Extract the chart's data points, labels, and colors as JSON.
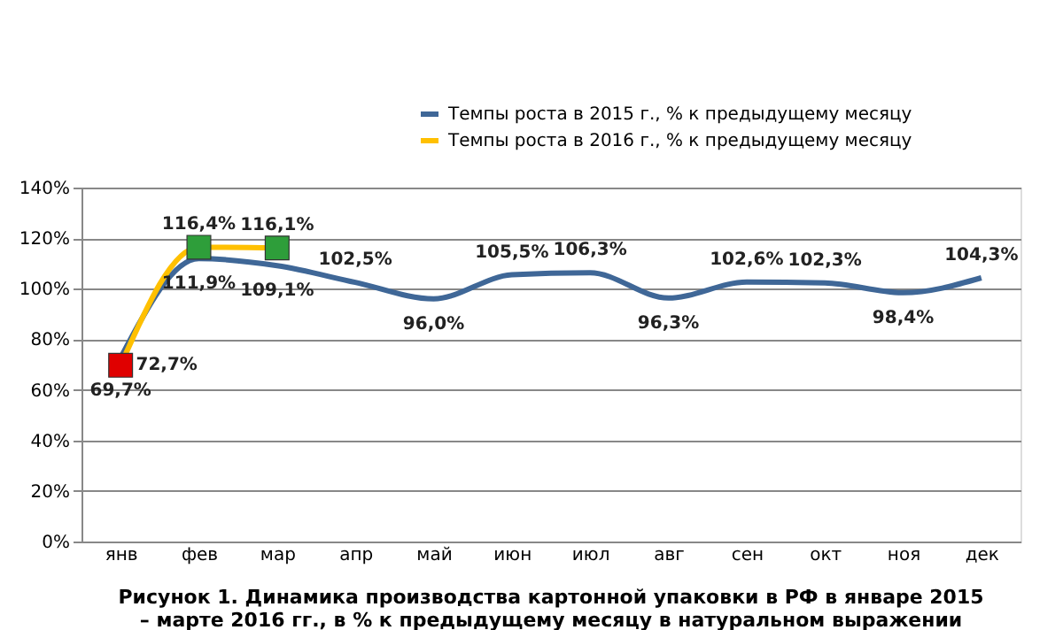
{
  "chart_data": {
    "type": "line",
    "title": "Рисунок 1. Динамика производства картонной упаковки в РФ в январе 2015 – марте 2016 гг., в % к предыдущему месяцу в натуральном выражении",
    "categories": [
      "янв",
      "фев",
      "мар",
      "апр",
      "май",
      "июн",
      "июл",
      "авг",
      "сен",
      "окт",
      "ноя",
      "дек"
    ],
    "series": [
      {
        "name": "Темпы роста в 2015 г., % к предыдущему месяцу",
        "color": "#3f6797",
        "marker": "none",
        "values": [
          72.7,
          111.9,
          109.1,
          102.5,
          96.0,
          105.5,
          106.3,
          96.3,
          102.6,
          102.3,
          98.4,
          104.3
        ],
        "value_labels": [
          "72,7%",
          "111,9%",
          "109,1%",
          "102,5%",
          "96,0%",
          "105,5%",
          "106,3%",
          "96,3%",
          "102,6%",
          "102,3%",
          "98,4%",
          "104,3%"
        ]
      },
      {
        "name": "Темпы роста в 2016 г., % к предыдущему месяцу",
        "color": "#ffc000",
        "marker": "square",
        "colors": [
          "#e00000",
          "#2e9e3a",
          "#2e9e3a",
          null,
          null,
          null,
          null,
          null,
          null,
          null,
          null,
          null
        ],
        "values": [
          69.7,
          116.4,
          116.1,
          null,
          null,
          null,
          null,
          null,
          null,
          null,
          null,
          null
        ],
        "value_labels": [
          "69,7%",
          "116,4%",
          "116,1%",
          null,
          null,
          null,
          null,
          null,
          null,
          null,
          null,
          null
        ]
      }
    ],
    "ylim": [
      0,
      140
    ],
    "yticks": [
      {
        "value": 0,
        "label": "0%"
      },
      {
        "value": 20,
        "label": "20%"
      },
      {
        "value": 40,
        "label": "40%"
      },
      {
        "value": 60,
        "label": "60%"
      },
      {
        "value": 80,
        "label": "80%"
      },
      {
        "value": 100,
        "label": "100%"
      },
      {
        "value": 120,
        "label": "120%"
      },
      {
        "value": 140,
        "label": "140%"
      }
    ],
    "grid": "y",
    "legend": "top right",
    "line_style": "solid"
  }
}
